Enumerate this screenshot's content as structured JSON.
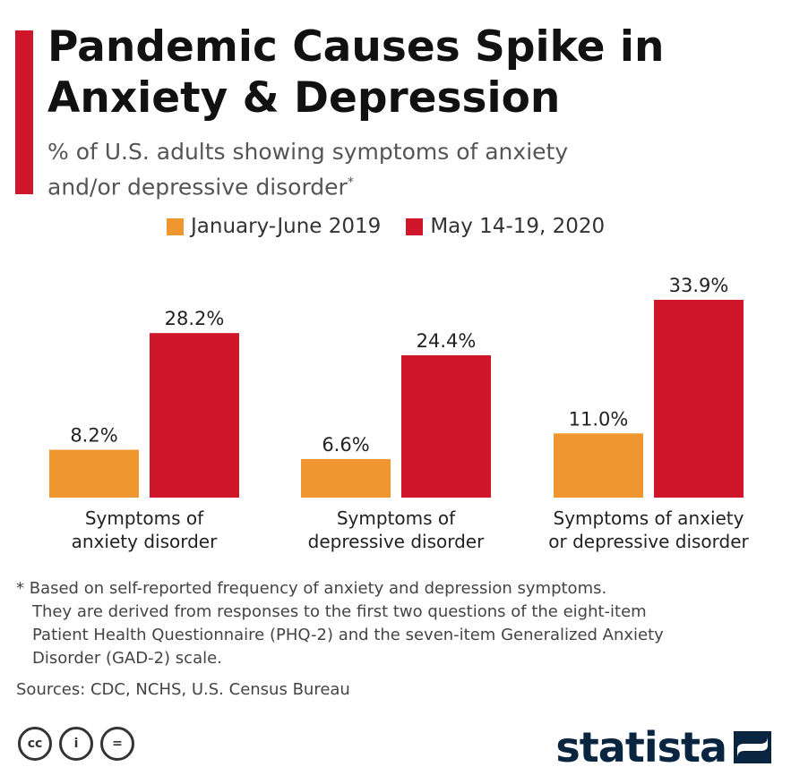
{
  "header": {
    "title_line1": "Pandemic Causes Spike in",
    "title_line2": "Anxiety & Depression",
    "subtitle_line1": "% of U.S. adults showing symptoms of anxiety",
    "subtitle_line2": "and/or depressive disorder",
    "subtitle_mark": "*"
  },
  "legend": {
    "items": [
      {
        "label": "January-June 2019",
        "color": "#f0962e"
      },
      {
        "label": "May 14-19, 2020",
        "color": "#d0162a"
      }
    ]
  },
  "chart_data": {
    "type": "bar",
    "categories": [
      [
        "Symptoms of",
        "anxiety disorder"
      ],
      [
        "Symptoms of",
        "depressive disorder"
      ],
      [
        "Symptoms of anxiety",
        "or depressive disorder"
      ]
    ],
    "series": [
      {
        "name": "January-June 2019",
        "values": [
          8.2,
          6.6,
          11.0
        ],
        "labels": [
          "8.2%",
          "6.6%",
          "11.0%"
        ],
        "color": "#f0962e"
      },
      {
        "name": "May 14-19, 2020",
        "values": [
          28.2,
          24.4,
          33.9
        ],
        "labels": [
          "28.2%",
          "24.4%",
          "33.9%"
        ],
        "color": "#d0162a"
      }
    ],
    "ylim": [
      0,
      33.9
    ],
    "grid": false,
    "legend_position": "top"
  },
  "footnote": {
    "line1": "* Based on self-reported frequency of anxiety and depression symptoms.",
    "line2": "They are derived from responses to the first two questions of the eight-item",
    "line3": "Patient Health Questionnaire (PHQ-2) and the seven-item Generalized Anxiety",
    "line4": "Disorder (GAD-2) scale."
  },
  "sources": "Sources: CDC, NCHS, U.S. Census Bureau",
  "license": {
    "cc_label": "cc",
    "by_label": "i",
    "nd_label": "="
  },
  "brand": {
    "name": "statista"
  }
}
